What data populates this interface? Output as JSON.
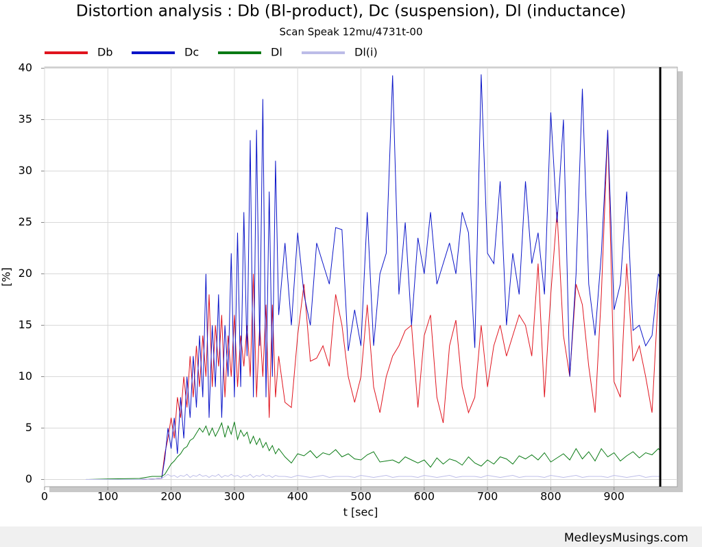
{
  "chart_data": {
    "type": "line",
    "title": "Distortion analysis : Db (Bl-product), Dc (suspension), Dl (inductance)",
    "subtitle": "Scan Speak 12mu/4731t-00",
    "xlabel": "t [sec]",
    "ylabel": "[%]",
    "footer": "MedleysMusings.com",
    "xlim": [
      0,
      1000
    ],
    "ylim": [
      -0.7,
      40.1
    ],
    "xticks": [
      0,
      100,
      200,
      300,
      400,
      500,
      600,
      700,
      800,
      900
    ],
    "yticks": [
      0,
      5,
      10,
      15,
      20,
      25,
      30,
      35,
      40
    ],
    "grid": true,
    "cursor_x": 973,
    "x": [
      65,
      100,
      150,
      170,
      185,
      190,
      195,
      200,
      205,
      210,
      215,
      220,
      225,
      230,
      235,
      240,
      245,
      250,
      255,
      260,
      265,
      270,
      275,
      280,
      285,
      290,
      295,
      300,
      305,
      310,
      315,
      320,
      325,
      330,
      335,
      340,
      345,
      350,
      355,
      360,
      365,
      370,
      380,
      390,
      400,
      410,
      420,
      430,
      440,
      450,
      460,
      470,
      480,
      490,
      500,
      510,
      520,
      530,
      540,
      550,
      560,
      570,
      580,
      590,
      600,
      610,
      620,
      630,
      640,
      650,
      660,
      670,
      680,
      690,
      700,
      710,
      720,
      730,
      740,
      750,
      760,
      770,
      780,
      790,
      800,
      810,
      820,
      830,
      840,
      850,
      860,
      870,
      880,
      890,
      900,
      910,
      920,
      930,
      940,
      950,
      960,
      970,
      973
    ],
    "series": [
      {
        "name": "Db",
        "color": "#e0141e",
        "values": [
          0,
          0,
          0,
          0.05,
          0.1,
          2.5,
          4,
          6,
          4,
          8,
          6,
          10,
          7,
          12,
          8,
          13,
          9,
          14,
          10,
          18,
          9,
          15,
          11,
          16,
          8,
          14,
          10,
          16,
          9,
          14,
          11,
          15,
          10,
          20,
          8,
          15,
          10,
          17,
          6,
          17,
          8,
          12,
          7.5,
          7,
          14,
          19,
          11.5,
          11.8,
          13,
          11,
          18,
          15,
          10,
          7.5,
          10,
          17,
          9,
          6.5,
          10,
          12,
          13,
          14.5,
          15,
          7,
          14,
          16,
          8,
          5.5,
          13,
          15.5,
          9,
          6.5,
          8,
          15,
          9,
          13,
          15,
          12,
          14,
          16,
          15,
          12,
          21,
          8,
          18,
          26,
          14,
          10,
          19,
          17,
          11,
          6.5,
          18,
          34,
          9.5,
          8,
          21,
          11.5,
          13,
          10,
          6.5,
          18,
          19
        ]
      },
      {
        "name": "Dc",
        "color": "#0a14c8",
        "values": [
          0,
          0,
          0,
          0.05,
          0.1,
          2,
          5,
          3,
          6,
          2.5,
          8,
          4,
          10,
          6,
          12,
          7,
          14,
          8,
          20,
          6,
          15,
          9,
          18,
          6,
          15,
          10,
          22,
          8,
          24,
          9,
          26,
          12,
          33,
          8,
          34,
          13,
          37,
          8,
          28,
          10,
          31,
          16,
          23,
          15,
          24,
          18,
          15,
          23,
          21,
          19,
          24.5,
          24.3,
          12.5,
          16.5,
          13,
          26,
          13,
          20,
          22,
          39.3,
          18,
          25,
          15,
          23.5,
          20,
          26,
          19,
          21,
          23,
          20,
          26,
          24,
          12.8,
          39.4,
          22,
          21,
          29,
          15,
          22,
          18,
          29,
          21,
          24,
          18,
          35.7,
          25,
          35,
          10,
          20,
          38,
          19,
          14,
          22,
          34,
          16.5,
          19,
          28,
          14.5,
          15,
          13,
          14,
          20,
          19.5
        ]
      },
      {
        "name": "Dl",
        "color": "#0a7a14",
        "values": [
          0,
          0.05,
          0.1,
          0.3,
          0.3,
          0.5,
          1,
          1.5,
          1.8,
          2.2,
          2.5,
          3,
          3.2,
          3.8,
          4,
          4.5,
          5,
          4.6,
          5.2,
          4.3,
          5,
          4.2,
          4.8,
          5.5,
          4.1,
          5.2,
          4.4,
          5.6,
          3.9,
          4.8,
          4.2,
          4.6,
          3.5,
          4.2,
          3.4,
          4,
          3.1,
          3.6,
          2.8,
          3.3,
          2.5,
          3,
          2.2,
          1.6,
          2.5,
          2.3,
          2.8,
          2.1,
          2.6,
          2.4,
          2.9,
          2.2,
          2.5,
          2.0,
          1.9,
          2.4,
          2.7,
          1.7,
          1.8,
          1.9,
          1.6,
          2.2,
          1.9,
          1.6,
          1.9,
          1.2,
          2.1,
          1.5,
          2.0,
          1.8,
          1.4,
          2.2,
          1.6,
          1.3,
          1.9,
          1.5,
          2.2,
          2.0,
          1.5,
          2.3,
          2.0,
          2.4,
          1.9,
          2.6,
          1.7,
          2.1,
          2.5,
          1.9,
          3.0,
          2.0,
          2.7,
          1.8,
          3.0,
          2.2,
          2.6,
          1.8,
          2.3,
          2.7,
          2.1,
          2.6,
          2.4,
          3.0,
          2.8
        ]
      },
      {
        "name": "Dl(i)",
        "color": "#bcbce8",
        "values": [
          0,
          0,
          0,
          0.05,
          0.1,
          0.3,
          0.5,
          0.3,
          0.4,
          0.2,
          0.4,
          0.3,
          0.5,
          0.2,
          0.4,
          0.3,
          0.5,
          0.3,
          0.4,
          0.2,
          0.4,
          0.3,
          0.5,
          0.2,
          0.4,
          0.3,
          0.5,
          0.3,
          0.4,
          0.2,
          0.4,
          0.3,
          0.5,
          0.2,
          0.4,
          0.3,
          0.5,
          0.3,
          0.4,
          0.2,
          0.4,
          0.3,
          0.3,
          0.2,
          0.4,
          0.3,
          0.2,
          0.3,
          0.4,
          0.2,
          0.3,
          0.3,
          0.3,
          0.2,
          0.4,
          0.3,
          0.2,
          0.3,
          0.4,
          0.2,
          0.3,
          0.3,
          0.3,
          0.2,
          0.4,
          0.3,
          0.2,
          0.3,
          0.4,
          0.2,
          0.3,
          0.3,
          0.3,
          0.2,
          0.4,
          0.3,
          0.2,
          0.3,
          0.4,
          0.2,
          0.3,
          0.3,
          0.3,
          0.2,
          0.4,
          0.3,
          0.2,
          0.3,
          0.4,
          0.2,
          0.3,
          0.3,
          0.3,
          0.2,
          0.4,
          0.3,
          0.2,
          0.3,
          0.4,
          0.2,
          0.3,
          0.3,
          0.3
        ]
      }
    ]
  }
}
